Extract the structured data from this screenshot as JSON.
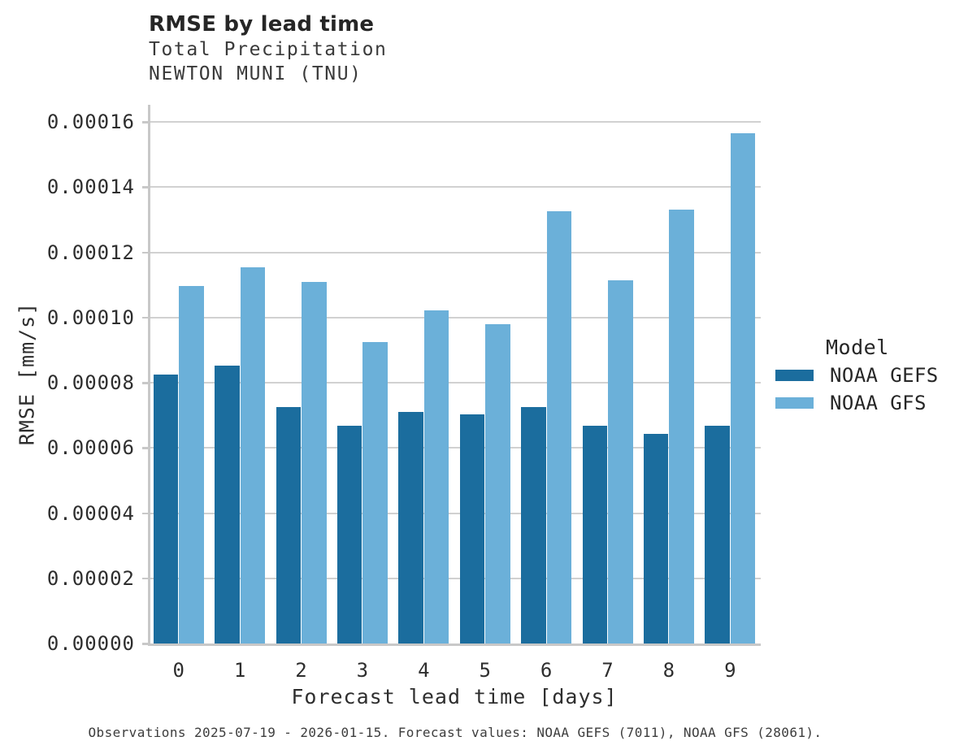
{
  "header": {
    "title": "RMSE by lead time",
    "subtitle1": "Total Precipitation",
    "subtitle2": "NEWTON MUNI (TNU)"
  },
  "chart_data": {
    "type": "bar",
    "title": "RMSE by lead time",
    "subtitle": [
      "Total Precipitation",
      "NEWTON MUNI (TNU)"
    ],
    "categories": [
      "0",
      "1",
      "2",
      "3",
      "4",
      "5",
      "6",
      "7",
      "8",
      "9"
    ],
    "series": [
      {
        "name": "NOAA GEFS",
        "color": "#1b6d9e",
        "values": [
          8.24e-05,
          8.53e-05,
          7.24e-05,
          6.68e-05,
          7.1e-05,
          7.03e-05,
          7.26e-05,
          6.68e-05,
          6.44e-05,
          6.69e-05
        ]
      },
      {
        "name": "NOAA GFS",
        "color": "#6bb0d9",
        "values": [
          0.0001097,
          0.0001155,
          0.000111,
          9.25e-05,
          0.0001022,
          9.8e-05,
          0.0001327,
          0.0001113,
          0.0001332,
          0.0001566
        ]
      }
    ],
    "xlabel": "Forecast lead time [days]",
    "ylabel": "RMSE [mm/s]",
    "ylim": [
      0,
      0.00016
    ],
    "yticks": [
      0.0,
      2e-05,
      4e-05,
      6e-05,
      8e-05,
      0.0001,
      0.00012,
      0.00014,
      0.00016
    ],
    "ytick_labels": [
      "0.00000",
      "0.00002",
      "0.00004",
      "0.00006",
      "0.00008",
      "0.00010",
      "0.00012",
      "0.00014",
      "0.00016"
    ],
    "grid": "horizontal",
    "legend_title": "Model",
    "legend_position": "right",
    "grid_color": "#d1d1d1",
    "spine_color": "#c8c8c8"
  },
  "caption": {
    "text": "Observations 2025-07-19 - 2026-01-15. Forecast values: NOAA GEFS (7011), NOAA GFS (28061)."
  }
}
